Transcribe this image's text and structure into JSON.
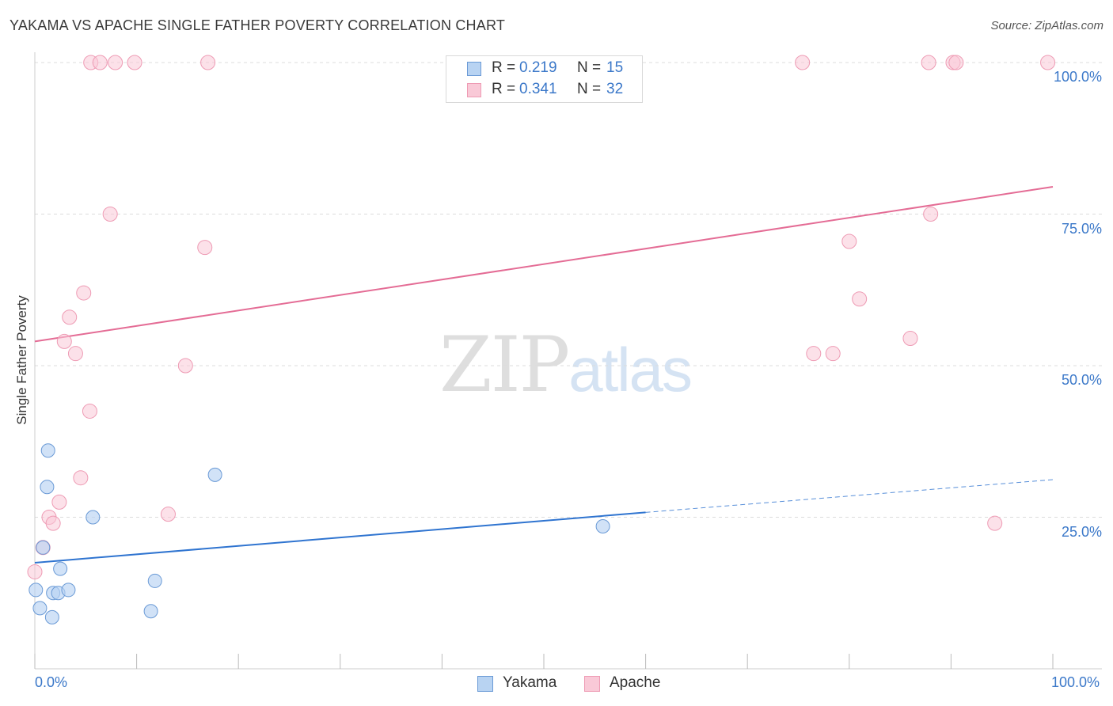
{
  "title": "YAKAMA VS APACHE SINGLE FATHER POVERTY CORRELATION CHART",
  "source": "Source: ZipAtlas.com",
  "watermark": {
    "part1": "ZIP",
    "part2": "atlas"
  },
  "legend": {
    "r_label": "R =",
    "n_label": "N =",
    "yakama": {
      "r": "0.219",
      "n": "15"
    },
    "apache": {
      "r": "0.341",
      "n": "32"
    }
  },
  "colors": {
    "yakama_fill": "#b8d3f2",
    "yakama_stroke": "#6a9ad6",
    "yakama_line": "#2f74d0",
    "apache_fill": "#f9c9d7",
    "apache_stroke": "#ee9bb4",
    "apache_line": "#e46c95",
    "tick_text": "#3b78c9",
    "grid": "#dcdcdc"
  },
  "chart_data": {
    "type": "scatter",
    "title": "YAKAMA VS APACHE SINGLE FATHER POVERTY CORRELATION CHART",
    "xlabel": "",
    "ylabel": "Single Father Poverty",
    "xlim": [
      0,
      100
    ],
    "ylim": [
      0,
      100
    ],
    "x_tick_labels": [
      "0.0%",
      "100.0%"
    ],
    "y_tick_labels": [
      "25.0%",
      "50.0%",
      "75.0%",
      "100.0%"
    ],
    "y_ticks": [
      25,
      50,
      75,
      100
    ],
    "series": [
      {
        "name": "Yakama",
        "points": [
          [
            1.3,
            36
          ],
          [
            1.2,
            30
          ],
          [
            0.8,
            20
          ],
          [
            2.5,
            16.5
          ],
          [
            1.8,
            12.5
          ],
          [
            2.3,
            12.5
          ],
          [
            3.3,
            13
          ],
          [
            0.1,
            13
          ],
          [
            0.5,
            10
          ],
          [
            1.7,
            8.5
          ],
          [
            5.7,
            25
          ],
          [
            17.7,
            32
          ],
          [
            11.8,
            14.5
          ],
          [
            11.4,
            9.5
          ],
          [
            55.8,
            23.5
          ]
        ],
        "trend": {
          "x0": 0,
          "y0": 17.5,
          "x1": 60,
          "y1": 25.8,
          "dash_to_x": 100,
          "dash_to_y": 31.2
        }
      },
      {
        "name": "Apache",
        "points": [
          [
            5.5,
            100
          ],
          [
            6.4,
            100
          ],
          [
            7.9,
            100
          ],
          [
            9.8,
            100
          ],
          [
            17,
            100
          ],
          [
            75.4,
            100
          ],
          [
            87.8,
            100
          ],
          [
            90.2,
            100
          ],
          [
            90.5,
            100
          ],
          [
            99.5,
            100
          ],
          [
            7.4,
            75
          ],
          [
            16.7,
            69.5
          ],
          [
            4.8,
            62
          ],
          [
            3.4,
            58
          ],
          [
            2.9,
            54
          ],
          [
            4,
            52
          ],
          [
            14.8,
            50
          ],
          [
            5.4,
            42.5
          ],
          [
            4.5,
            31.5
          ],
          [
            2.4,
            27.5
          ],
          [
            1.4,
            25
          ],
          [
            1.8,
            24
          ],
          [
            0.8,
            20
          ],
          [
            13.1,
            25.5
          ],
          [
            0,
            16
          ],
          [
            88,
            75
          ],
          [
            80,
            70.5
          ],
          [
            81,
            61
          ],
          [
            76.5,
            52
          ],
          [
            78.4,
            52
          ],
          [
            86,
            54.5
          ],
          [
            94.3,
            24
          ]
        ],
        "trend": {
          "x0": 0,
          "y0": 54,
          "x1": 100,
          "y1": 79.5
        }
      }
    ]
  }
}
